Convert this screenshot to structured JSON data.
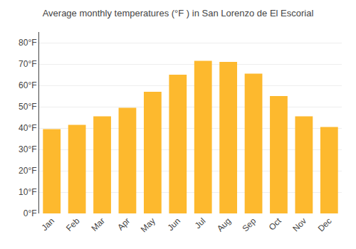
{
  "chart_data": {
    "type": "bar",
    "title": "Average monthly temperatures (°F ) in San Lorenzo de El Escorial",
    "categories": [
      "Jan",
      "Feb",
      "Mar",
      "Apr",
      "May",
      "Jun",
      "Jul",
      "Aug",
      "Sep",
      "Oct",
      "Nov",
      "Dec"
    ],
    "values": [
      39.5,
      41.5,
      45.5,
      49.5,
      57,
      65,
      71.5,
      71,
      65.5,
      55,
      45.5,
      40.5
    ],
    "color": "#FDB92E",
    "ylim": [
      0,
      85
    ],
    "yticks": [
      {
        "value": 0,
        "label": "0°F"
      },
      {
        "value": 10,
        "label": "10°F"
      },
      {
        "value": 20,
        "label": "20°F"
      },
      {
        "value": 30,
        "label": "30°F"
      },
      {
        "value": 40,
        "label": "40°F"
      },
      {
        "value": 50,
        "label": "50°F"
      },
      {
        "value": 60,
        "label": "60°F"
      },
      {
        "value": 70,
        "label": "70°F"
      },
      {
        "value": 80,
        "label": "80°F"
      }
    ],
    "grid": true
  }
}
